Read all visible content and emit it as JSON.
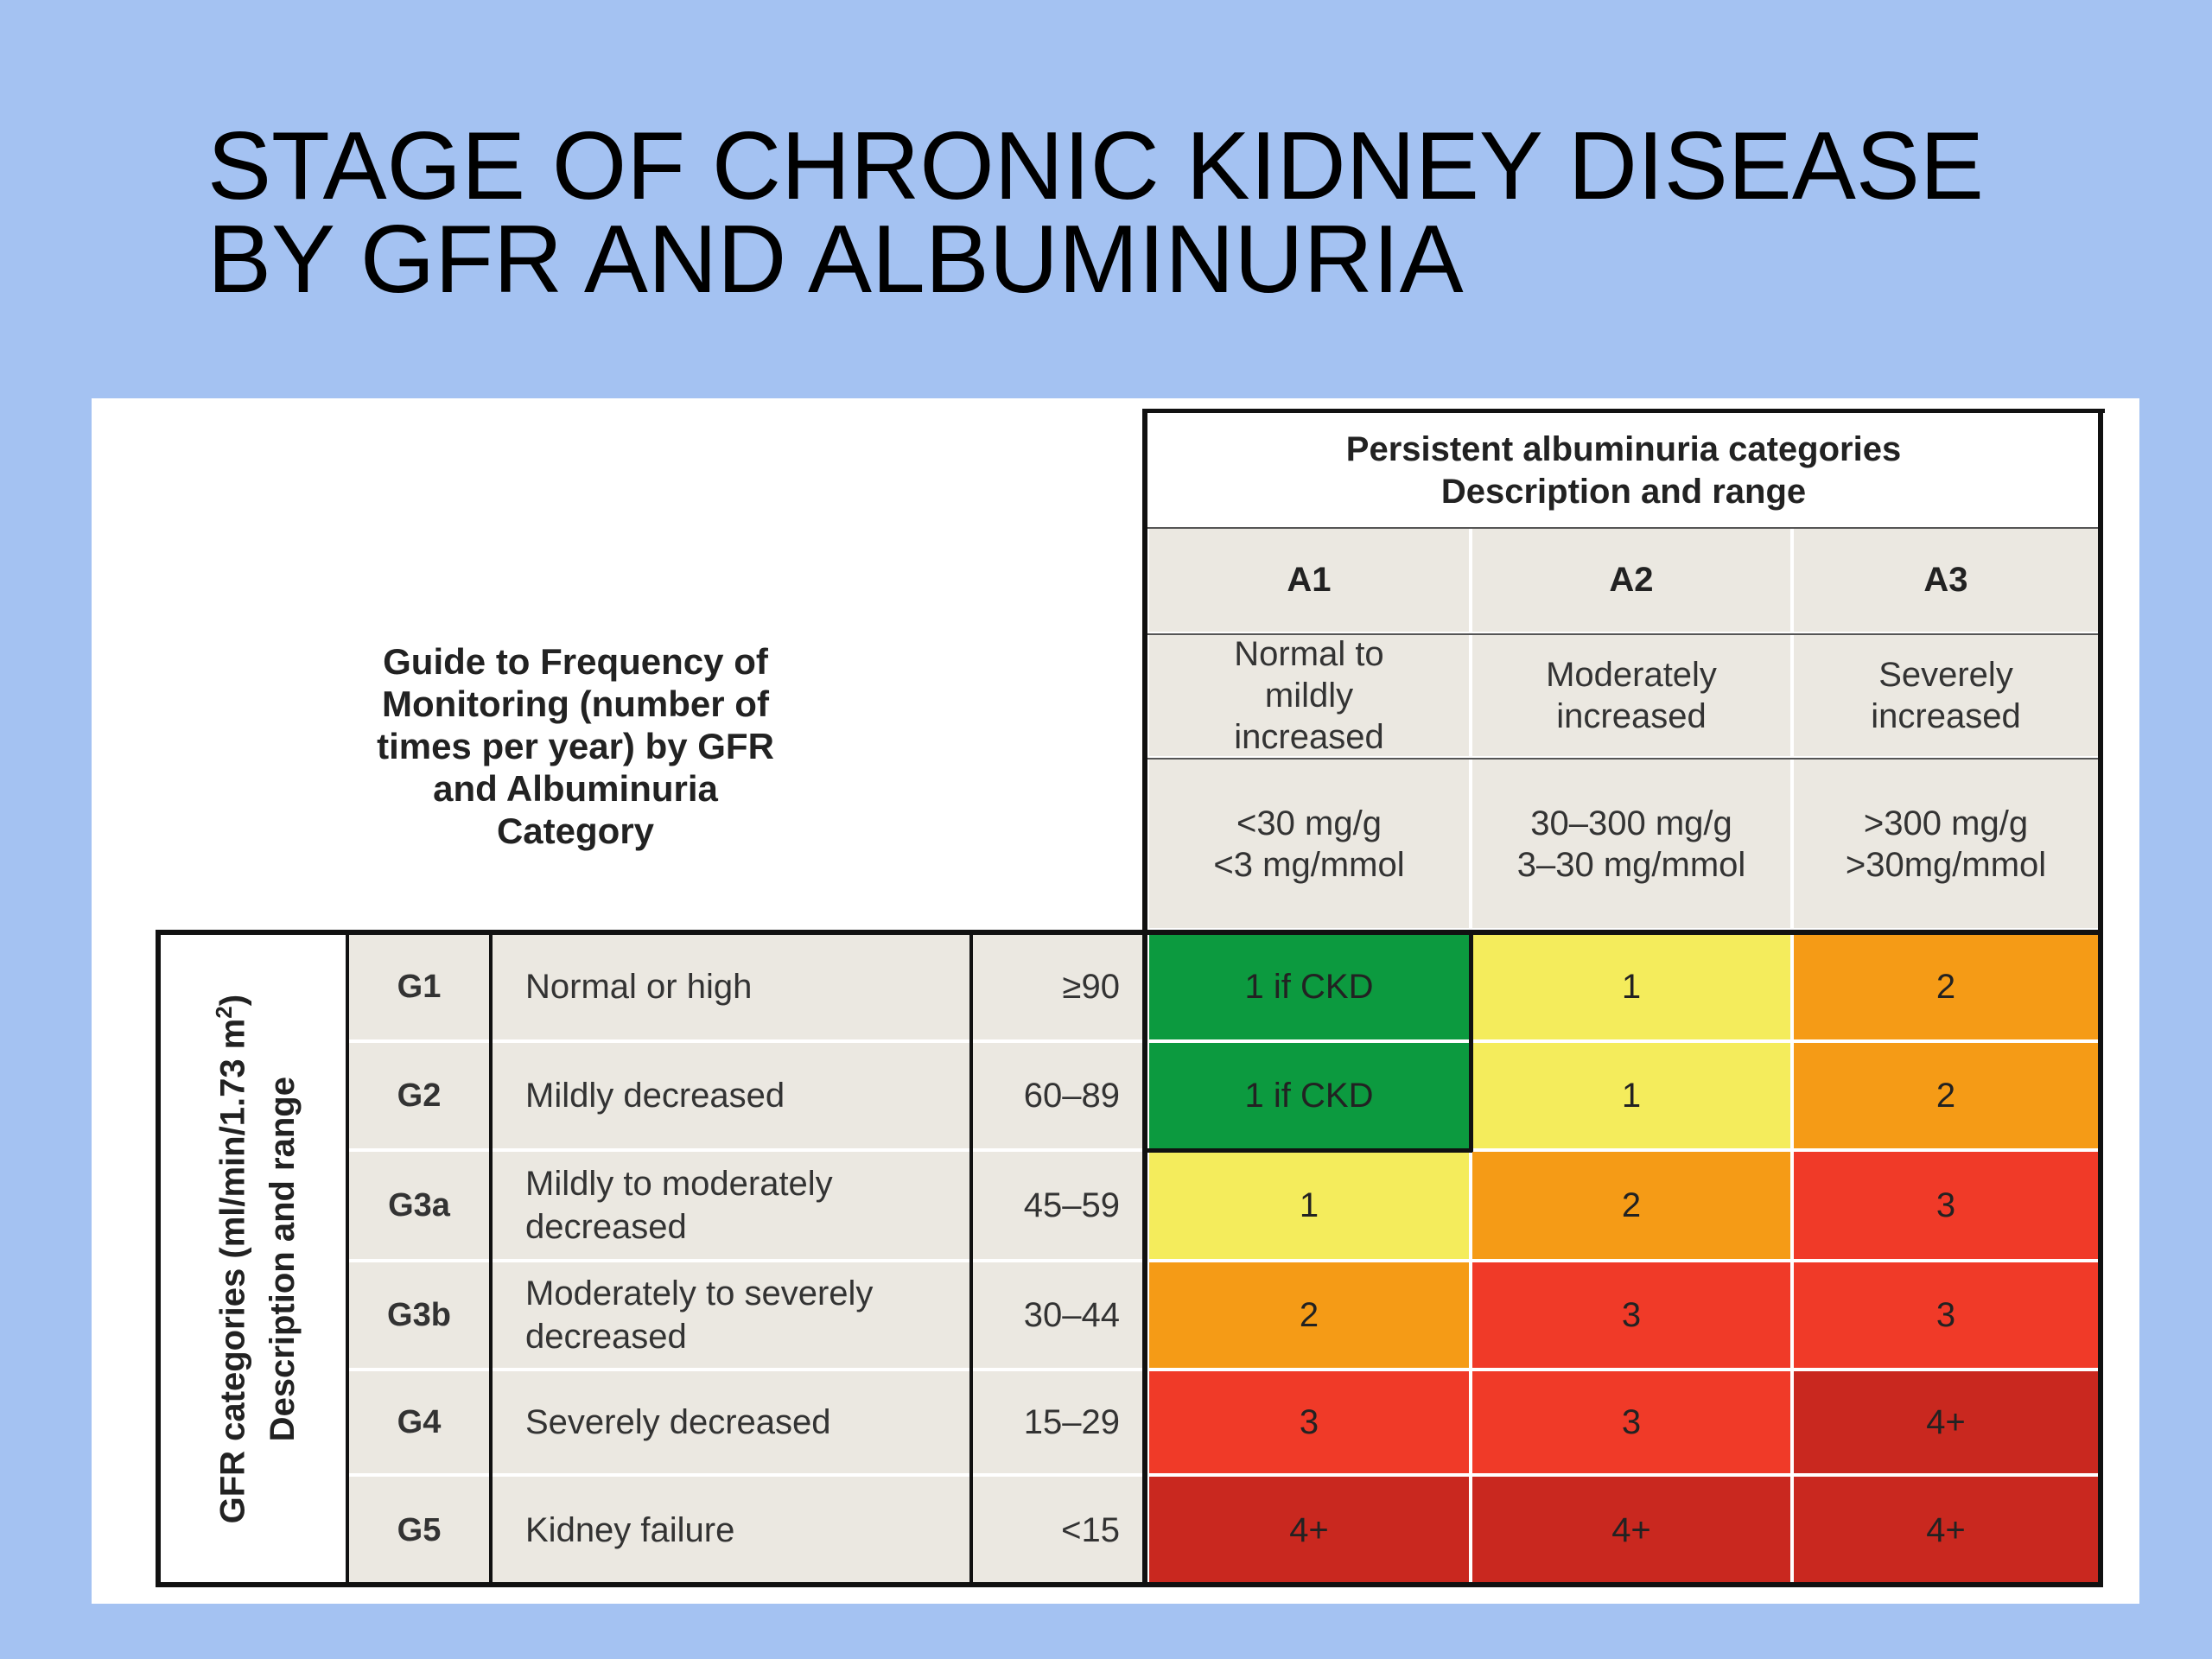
{
  "slide": {
    "title": "STAGE OF CHRONIC KIDNEY DISEASE\nBY GFR AND ALBUMINURIA"
  },
  "guide": {
    "text": "Guide to Frequency of Monitoring (number of times per year) by GFR and Albuminuria Category"
  },
  "albuminuria": {
    "header_line1": "Persistent albuminuria categories",
    "header_line2": "Description  and range",
    "columns": [
      {
        "code": "A1",
        "description": "Normal to mildly increased",
        "range_line1": "<30 mg/g",
        "range_line2": "<3 mg/mmol"
      },
      {
        "code": "A2",
        "description": "Moderately increased",
        "range_line1": "30–300 mg/g",
        "range_line2": "3–30 mg/mmol"
      },
      {
        "code": "A3",
        "description": "Severely increased",
        "range_line1": ">300 mg/g",
        "range_line2": ">30mg/mmol"
      }
    ]
  },
  "gfr": {
    "axis_label_line1": "GFR categories (ml/min/1.73 m",
    "axis_label_sup": "2",
    "axis_label_line1_end": ")",
    "axis_label_line2": "Description and range",
    "rows": [
      {
        "code": "G1",
        "description": "Normal or high",
        "range": "≥90",
        "values": [
          "1 if CKD",
          "1",
          "2"
        ],
        "colors": [
          "#0c9a3f",
          "#f4ec5c",
          "#f59b16"
        ]
      },
      {
        "code": "G2",
        "description": "Mildly decreased",
        "range": "60–89",
        "values": [
          "1 if CKD",
          "1",
          "2"
        ],
        "colors": [
          "#0c9a3f",
          "#f4ec5c",
          "#f59b16"
        ]
      },
      {
        "code": "G3a",
        "description": "Mildly to moderately decreased",
        "range": "45–59",
        "values": [
          "1",
          "2",
          "3"
        ],
        "colors": [
          "#f4ec5c",
          "#f59b16",
          "#f03a28"
        ]
      },
      {
        "code": "G3b",
        "description": "Moderately to severely decreased",
        "range": "30–44",
        "values": [
          "2",
          "3",
          "3"
        ],
        "colors": [
          "#f59b16",
          "#f03a28",
          "#f03a28"
        ]
      },
      {
        "code": "G4",
        "description": "Severely decreased",
        "range": "15–29",
        "values": [
          "3",
          "3",
          "4+"
        ],
        "colors": [
          "#f03a28",
          "#f03a28",
          "#c9281f"
        ]
      },
      {
        "code": "G5",
        "description": "Kidney failure",
        "range": "<15",
        "values": [
          "4+",
          "4+",
          "4+"
        ],
        "colors": [
          "#c9281f",
          "#c9281f",
          "#c9281f"
        ]
      }
    ]
  }
}
